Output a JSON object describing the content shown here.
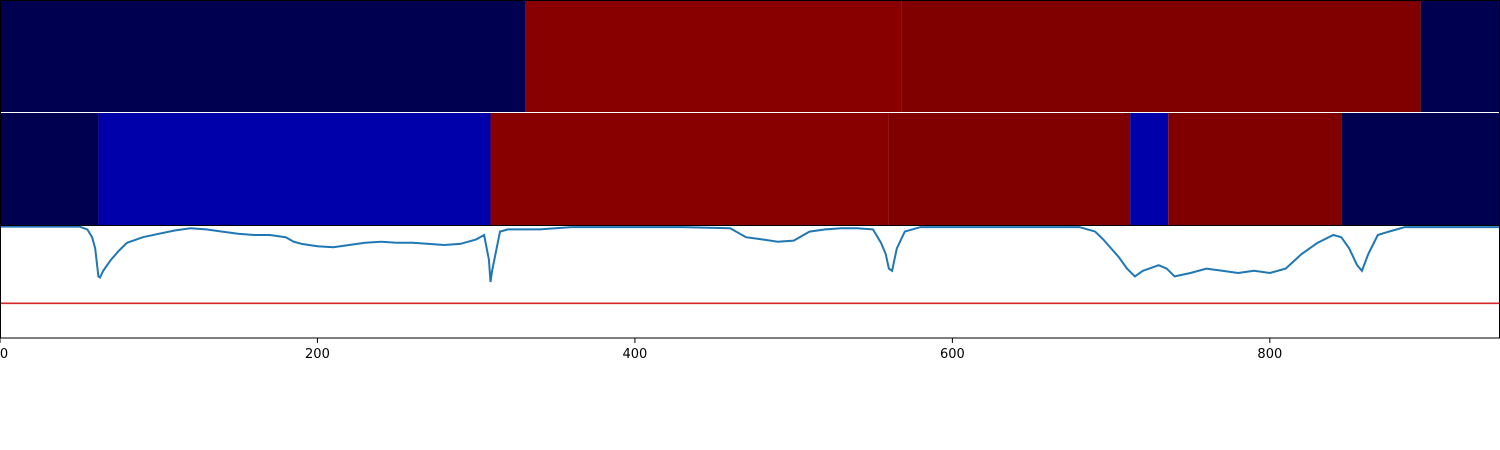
{
  "chart_data": {
    "type": "segmentation_with_line",
    "xlim": [
      0,
      945
    ],
    "x_ticks": [
      0,
      200,
      400,
      600,
      800
    ],
    "x_tick_labels": [
      "0",
      "200",
      "400",
      "600",
      "800"
    ],
    "grid": false,
    "legend": "none",
    "bands": [
      {
        "segments": [
          {
            "start": 0,
            "end": 331,
            "color": "#000050"
          },
          {
            "start": 331,
            "end": 568,
            "color": "#880000"
          },
          {
            "start": 568,
            "end": 895,
            "color": "#800000"
          },
          {
            "start": 895,
            "end": 945,
            "color": "#000050"
          }
        ]
      },
      {
        "segments": [
          {
            "start": 0,
            "end": 62,
            "color": "#000050"
          },
          {
            "start": 62,
            "end": 309,
            "color": "#0000aa"
          },
          {
            "start": 309,
            "end": 560,
            "color": "#880000"
          },
          {
            "start": 560,
            "end": 712,
            "color": "#800000"
          },
          {
            "start": 712,
            "end": 736,
            "color": "#0000aa"
          },
          {
            "start": 736,
            "end": 845,
            "color": "#800000"
          },
          {
            "start": 845,
            "end": 945,
            "color": "#000050"
          }
        ]
      }
    ],
    "line_panel": {
      "ylim": [
        0,
        1
      ],
      "threshold": 0.31,
      "threshold_color": "#d62728",
      "line_color": "#1f77b4",
      "series": [
        [
          0,
          0.995
        ],
        [
          50,
          0.995
        ],
        [
          55,
          0.97
        ],
        [
          58,
          0.9
        ],
        [
          60,
          0.8
        ],
        [
          62,
          0.55
        ],
        [
          63,
          0.54
        ],
        [
          65,
          0.6
        ],
        [
          70,
          0.7
        ],
        [
          75,
          0.78
        ],
        [
          80,
          0.85
        ],
        [
          90,
          0.9
        ],
        [
          100,
          0.93
        ],
        [
          110,
          0.96
        ],
        [
          120,
          0.98
        ],
        [
          130,
          0.97
        ],
        [
          140,
          0.95
        ],
        [
          150,
          0.93
        ],
        [
          160,
          0.92
        ],
        [
          170,
          0.92
        ],
        [
          180,
          0.9
        ],
        [
          185,
          0.86
        ],
        [
          190,
          0.84
        ],
        [
          200,
          0.82
        ],
        [
          210,
          0.81
        ],
        [
          220,
          0.83
        ],
        [
          230,
          0.85
        ],
        [
          240,
          0.86
        ],
        [
          250,
          0.85
        ],
        [
          260,
          0.85
        ],
        [
          270,
          0.84
        ],
        [
          280,
          0.83
        ],
        [
          290,
          0.84
        ],
        [
          300,
          0.88
        ],
        [
          305,
          0.92
        ],
        [
          308,
          0.7
        ],
        [
          309,
          0.5
        ],
        [
          310,
          0.6
        ],
        [
          315,
          0.95
        ],
        [
          320,
          0.97
        ],
        [
          330,
          0.97
        ],
        [
          340,
          0.97
        ],
        [
          350,
          0.98
        ],
        [
          360,
          0.99
        ],
        [
          380,
          0.99
        ],
        [
          400,
          0.99
        ],
        [
          430,
          0.99
        ],
        [
          460,
          0.98
        ],
        [
          470,
          0.9
        ],
        [
          480,
          0.88
        ],
        [
          490,
          0.86
        ],
        [
          500,
          0.87
        ],
        [
          510,
          0.95
        ],
        [
          520,
          0.97
        ],
        [
          530,
          0.98
        ],
        [
          540,
          0.98
        ],
        [
          550,
          0.97
        ],
        [
          555,
          0.85
        ],
        [
          558,
          0.75
        ],
        [
          560,
          0.62
        ],
        [
          562,
          0.6
        ],
        [
          565,
          0.8
        ],
        [
          570,
          0.95
        ],
        [
          580,
          0.99
        ],
        [
          600,
          0.99
        ],
        [
          650,
          0.99
        ],
        [
          680,
          0.99
        ],
        [
          690,
          0.95
        ],
        [
          695,
          0.88
        ],
        [
          700,
          0.8
        ],
        [
          705,
          0.72
        ],
        [
          710,
          0.62
        ],
        [
          715,
          0.55
        ],
        [
          720,
          0.6
        ],
        [
          730,
          0.65
        ],
        [
          735,
          0.62
        ],
        [
          740,
          0.55
        ],
        [
          750,
          0.58
        ],
        [
          760,
          0.62
        ],
        [
          770,
          0.6
        ],
        [
          780,
          0.58
        ],
        [
          790,
          0.6
        ],
        [
          800,
          0.58
        ],
        [
          810,
          0.62
        ],
        [
          820,
          0.75
        ],
        [
          830,
          0.85
        ],
        [
          840,
          0.92
        ],
        [
          845,
          0.9
        ],
        [
          850,
          0.8
        ],
        [
          855,
          0.65
        ],
        [
          858,
          0.6
        ],
        [
          862,
          0.75
        ],
        [
          868,
          0.92
        ],
        [
          875,
          0.95
        ],
        [
          880,
          0.97
        ],
        [
          885,
          0.99
        ],
        [
          890,
          0.99
        ],
        [
          900,
          0.99
        ],
        [
          920,
          0.99
        ],
        [
          945,
          0.99
        ]
      ]
    }
  }
}
